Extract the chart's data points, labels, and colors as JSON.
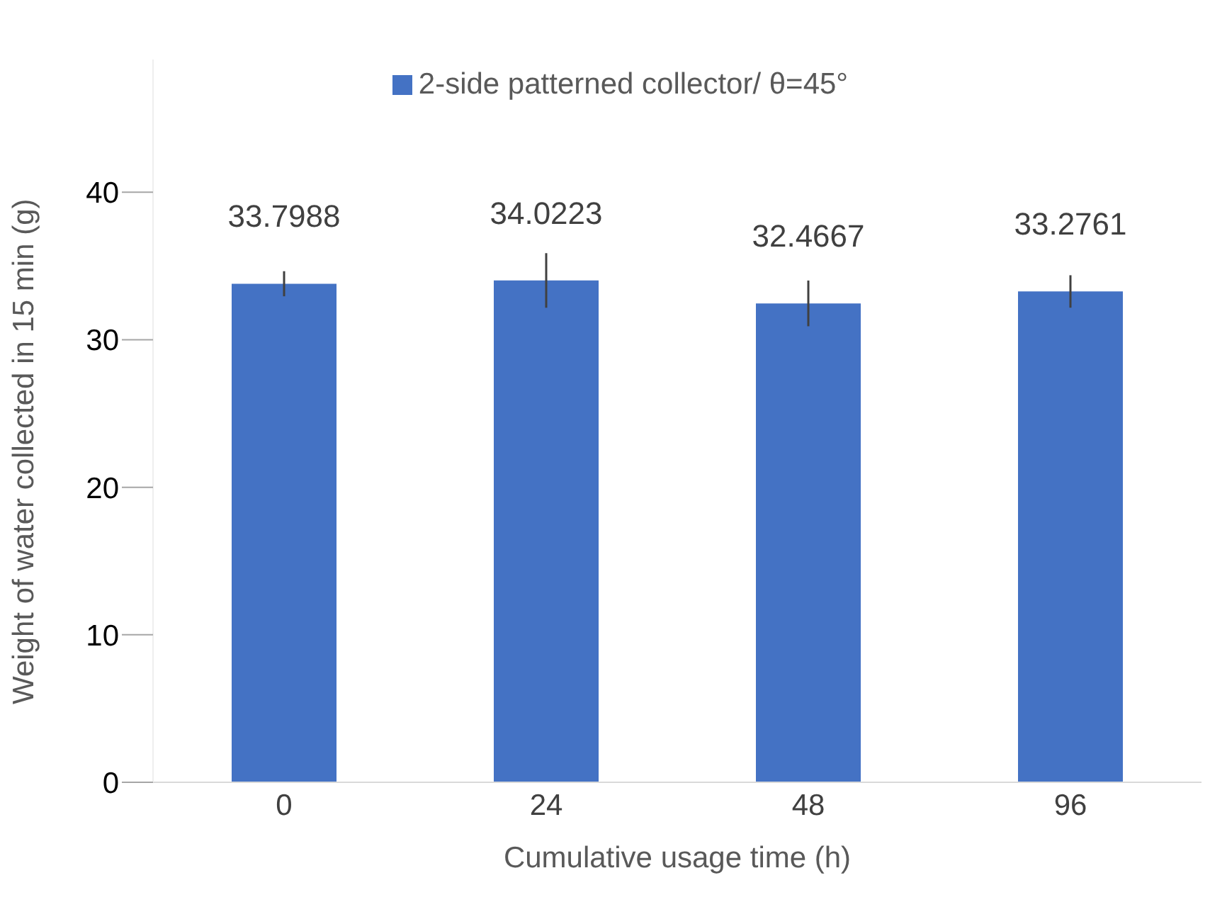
{
  "chart_data": {
    "type": "bar",
    "categories": [
      "0",
      "24",
      "48",
      "96"
    ],
    "series": [
      {
        "name": "2-side patterned collector/ θ=45°",
        "color": "#4472c4",
        "values": [
          33.7988,
          34.0223,
          32.4667,
          33.2761
        ],
        "errors": [
          0.85,
          1.85,
          1.55,
          1.1
        ]
      }
    ],
    "data_labels": true,
    "xlabel": "Cumulative usage time (h)",
    "ylabel": "Weight of water collected in 15 min (g)",
    "ylim": [
      0,
      49
    ],
    "yticks": [
      0,
      10,
      20,
      30,
      40
    ],
    "grid": false,
    "legend": "top"
  }
}
